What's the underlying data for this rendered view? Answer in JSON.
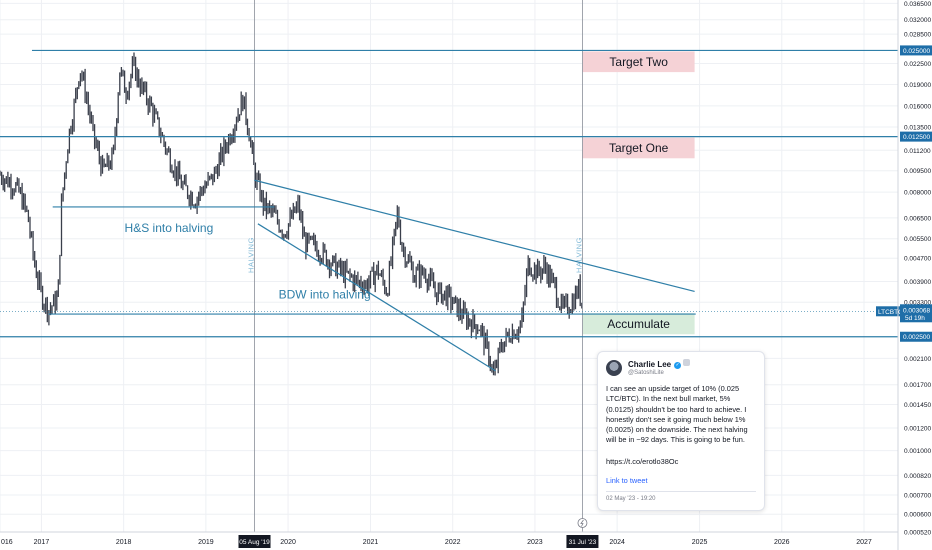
{
  "chart_data": {
    "type": "line",
    "symbol": "LTCBTC",
    "y_scale": "log",
    "x_range": [
      "2016-07-01",
      "2027-06-01"
    ],
    "y_range": [
      0.00052,
      0.0375
    ],
    "x_ticks": [
      {
        "label": "016",
        "date": "2016-07-01"
      },
      {
        "label": "2017",
        "date": "2017-01-01"
      },
      {
        "label": "2018",
        "date": "2018-01-01"
      },
      {
        "label": "2019",
        "date": "2019-01-01"
      },
      {
        "label": "2020",
        "date": "2020-01-01"
      },
      {
        "label": "2021",
        "date": "2021-01-01"
      },
      {
        "label": "2022",
        "date": "2022-01-01"
      },
      {
        "label": "2023",
        "date": "2023-01-01"
      },
      {
        "label": "2024",
        "date": "2024-01-01"
      },
      {
        "label": "2025",
        "date": "2025-01-01"
      },
      {
        "label": "2026",
        "date": "2026-01-01"
      },
      {
        "label": "2027",
        "date": "2027-01-01"
      }
    ],
    "x_highlight_labels": [
      {
        "label": "05 Aug '19",
        "date": "2019-08-05"
      },
      {
        "label": "31 Jul '23",
        "date": "2023-07-31"
      }
    ],
    "y_ticks": [
      0.0365,
      0.032,
      0.0285,
      0.0225,
      0.019,
      0.016,
      0.0135,
      0.0112,
      0.0095,
      0.008,
      0.0065,
      0.0055,
      0.0047,
      0.0039,
      0.0033,
      0.0021,
      0.0017,
      0.00145,
      0.0012,
      0.001,
      0.00082,
      0.0007,
      0.0006,
      0.00052
    ],
    "y_tick_labels": [
      "0.036500",
      "0.032000",
      "0.028500",
      "0.022500",
      "0.019000",
      "0.016000",
      "0.013500",
      "0.011200",
      "0.009500",
      "0.008000",
      "0.006500",
      "0.005500",
      "0.004700",
      "0.003900",
      "0.003300",
      "0.002100",
      "0.001700",
      "0.001450",
      "0.001200",
      "0.001000",
      "0.000820",
      "0.000700",
      "0.000600",
      "0.000520"
    ],
    "price_labels": [
      {
        "value": 0.025,
        "label": "0.025000"
      },
      {
        "value": 0.0125,
        "label": "0.012500"
      },
      {
        "value": 0.0025,
        "label": "0.002500"
      }
    ],
    "current_price": {
      "value": 0.003068,
      "label": "0.003068",
      "symbol_label": "LTCBTC",
      "countdown": "5d 19h"
    },
    "horizontal_levels": [
      {
        "value": 0.025,
        "from": "2016-11-20",
        "to": "2027-06-01"
      },
      {
        "value": 0.0125,
        "from": "2016-07-01",
        "to": "2027-06-01"
      },
      {
        "value": 0.0025,
        "from": "2016-07-01",
        "to": "2027-06-01"
      },
      {
        "value": 0.0071,
        "from": "2017-02-20",
        "to": "2019-11-01"
      },
      {
        "value": 0.003,
        "from": "2017-02-01",
        "to": "2024-12-15"
      }
    ],
    "trend_lines": [
      {
        "from": {
          "date": "2019-08-05",
          "value": 0.0088
        },
        "to": {
          "date": "2024-12-10",
          "value": 0.0036
        }
      },
      {
        "from": {
          "date": "2019-08-20",
          "value": 0.0062
        },
        "to": {
          "date": "2022-07-10",
          "value": 0.0019
        }
      }
    ],
    "vertical_lines": [
      {
        "date": "2019-08-05",
        "label": "HALVING"
      },
      {
        "date": "2023-07-31",
        "label": "HALVING"
      }
    ],
    "annotations": [
      {
        "text": "H&S into halving",
        "date": "2018-01-05",
        "value": 0.0058
      },
      {
        "text": "BDW into halving",
        "date": "2019-11-20",
        "value": 0.0034
      }
    ],
    "boxes": [
      {
        "text": "Target Two",
        "from": "2023-08-01",
        "to": "2024-12-10",
        "low": 0.021,
        "high": 0.0248,
        "color": "#f5d2d6"
      },
      {
        "text": "Target One",
        "from": "2023-08-01",
        "to": "2024-12-10",
        "low": 0.0105,
        "high": 0.0124,
        "color": "#f5d2d6"
      },
      {
        "text": "Accumulate",
        "from": "2023-08-01",
        "to": "2024-12-10",
        "low": 0.00255,
        "high": 0.00302,
        "color": "#d7ecdb"
      }
    ],
    "price_series": [
      [
        "2016-07-01",
        0.0092
      ],
      [
        "2016-08-01",
        0.0088
      ],
      [
        "2016-09-01",
        0.0085
      ],
      [
        "2016-10-01",
        0.0078
      ],
      [
        "2016-11-01",
        0.0066
      ],
      [
        "2016-12-01",
        0.0045
      ],
      [
        "2017-01-01",
        0.0035
      ],
      [
        "2017-02-01",
        0.0031
      ],
      [
        "2017-03-15",
        0.0034
      ],
      [
        "2017-04-01",
        0.0075
      ],
      [
        "2017-05-01",
        0.0125
      ],
      [
        "2017-06-01",
        0.017
      ],
      [
        "2017-06-20",
        0.022
      ],
      [
        "2017-07-15",
        0.018
      ],
      [
        "2017-08-20",
        0.0125
      ],
      [
        "2017-10-01",
        0.0095
      ],
      [
        "2017-11-15",
        0.0105
      ],
      [
        "2017-12-15",
        0.0215
      ],
      [
        "2018-01-10",
        0.018
      ],
      [
        "2018-02-15",
        0.022
      ],
      [
        "2018-03-15",
        0.019
      ],
      [
        "2018-05-01",
        0.016
      ],
      [
        "2018-07-15",
        0.011
      ],
      [
        "2018-09-15",
        0.0085
      ],
      [
        "2018-11-15",
        0.0075
      ],
      [
        "2018-12-15",
        0.0082
      ],
      [
        "2019-02-01",
        0.009
      ],
      [
        "2019-04-15",
        0.0125
      ],
      [
        "2019-06-15",
        0.017
      ],
      [
        "2019-07-15",
        0.0125
      ],
      [
        "2019-08-05",
        0.0093
      ],
      [
        "2019-09-15",
        0.0072
      ],
      [
        "2019-11-01",
        0.0066
      ],
      [
        "2019-12-15",
        0.0058
      ],
      [
        "2020-02-15",
        0.0072
      ],
      [
        "2020-03-15",
        0.0053
      ],
      [
        "2020-05-01",
        0.0052
      ],
      [
        "2020-07-15",
        0.0045
      ],
      [
        "2020-09-01",
        0.0042
      ],
      [
        "2020-11-01",
        0.0039
      ],
      [
        "2020-12-15",
        0.0038
      ],
      [
        "2021-02-01",
        0.0043
      ],
      [
        "2021-03-15",
        0.0036
      ],
      [
        "2021-05-01",
        0.0068
      ],
      [
        "2021-05-20",
        0.0052
      ],
      [
        "2021-07-15",
        0.0041
      ],
      [
        "2021-09-01",
        0.0042
      ],
      [
        "2021-10-15",
        0.0036
      ],
      [
        "2021-12-01",
        0.0035
      ],
      [
        "2022-01-15",
        0.0032
      ],
      [
        "2022-03-01",
        0.0029
      ],
      [
        "2022-05-01",
        0.0027
      ],
      [
        "2022-06-15",
        0.0021
      ],
      [
        "2022-07-01",
        0.0018
      ],
      [
        "2022-08-01",
        0.0023
      ],
      [
        "2022-09-15",
        0.0026
      ],
      [
        "2022-11-01",
        0.0027
      ],
      [
        "2022-12-01",
        0.0045
      ],
      [
        "2023-01-15",
        0.0042
      ],
      [
        "2023-02-15",
        0.0044
      ],
      [
        "2023-04-01",
        0.0037
      ],
      [
        "2023-05-01",
        0.0031
      ],
      [
        "2023-06-15",
        0.0033
      ],
      [
        "2023-07-15",
        0.0037
      ],
      [
        "2023-08-01",
        0.0031
      ]
    ]
  },
  "tweet": {
    "author": "Charlie Lee",
    "handle": "@SatoshiLite",
    "body": "I can see an upside target of 10% (0.025 LTC/BTC). In the next bull market, 5% (0.0125) shouldn't be too hard to achieve. I honestly don't see it going much below 1% (0.0025) on the downside. The next halving will be in ~92 days. This is going to be fun.",
    "url": "https://t.co/erotlo38Oc",
    "link_label": "Link to tweet",
    "date": "02 May '23 - 19:20"
  },
  "colors": {
    "line": "#2f7fa8",
    "candle": "#3a3f4b",
    "axis_label_bg": "#1e6ea8",
    "highlight_label_bg": "#131722",
    "grid": "#eef0f4"
  }
}
